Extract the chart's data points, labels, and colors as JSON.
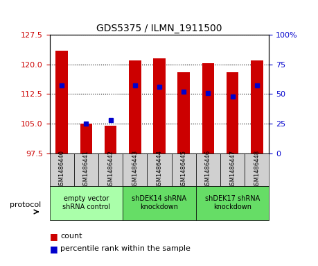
{
  "title": "GDS5375 / ILMN_1911500",
  "samples": [
    "GSM1486440",
    "GSM1486441",
    "GSM1486442",
    "GSM1486443",
    "GSM1486444",
    "GSM1486445",
    "GSM1486446",
    "GSM1486447",
    "GSM1486448"
  ],
  "counts": [
    123.5,
    105.0,
    104.5,
    121.0,
    121.5,
    118.0,
    120.2,
    118.0,
    121.0
  ],
  "percentiles": [
    57,
    25,
    28,
    57,
    56,
    52,
    51,
    48,
    57
  ],
  "ymin": 97.5,
  "ymax": 127.5,
  "y2min": 0,
  "y2max": 100,
  "yticks": [
    97.5,
    105,
    112.5,
    120,
    127.5
  ],
  "y2ticks": [
    0,
    25,
    50,
    75,
    100
  ],
  "bar_color": "#cc0000",
  "dot_color": "#0000cc",
  "bar_width": 0.5,
  "groups": [
    {
      "label": "empty vector\nshRNA control",
      "start": 0,
      "end": 3,
      "color": "#aaffaa"
    },
    {
      "label": "shDEK14 shRNA\nknockdown",
      "start": 3,
      "end": 6,
      "color": "#55ee55"
    },
    {
      "label": "shDEK17 shRNA\nknockdown",
      "start": 6,
      "end": 9,
      "color": "#55ee55"
    }
  ],
  "legend_count_color": "#cc0000",
  "legend_dot_color": "#0000cc",
  "tick_color_left": "#cc0000",
  "tick_color_right": "#0000cc",
  "base_value": 97.5,
  "group_colors": [
    "#aaffaa",
    "#66dd66",
    "#66dd66"
  ]
}
